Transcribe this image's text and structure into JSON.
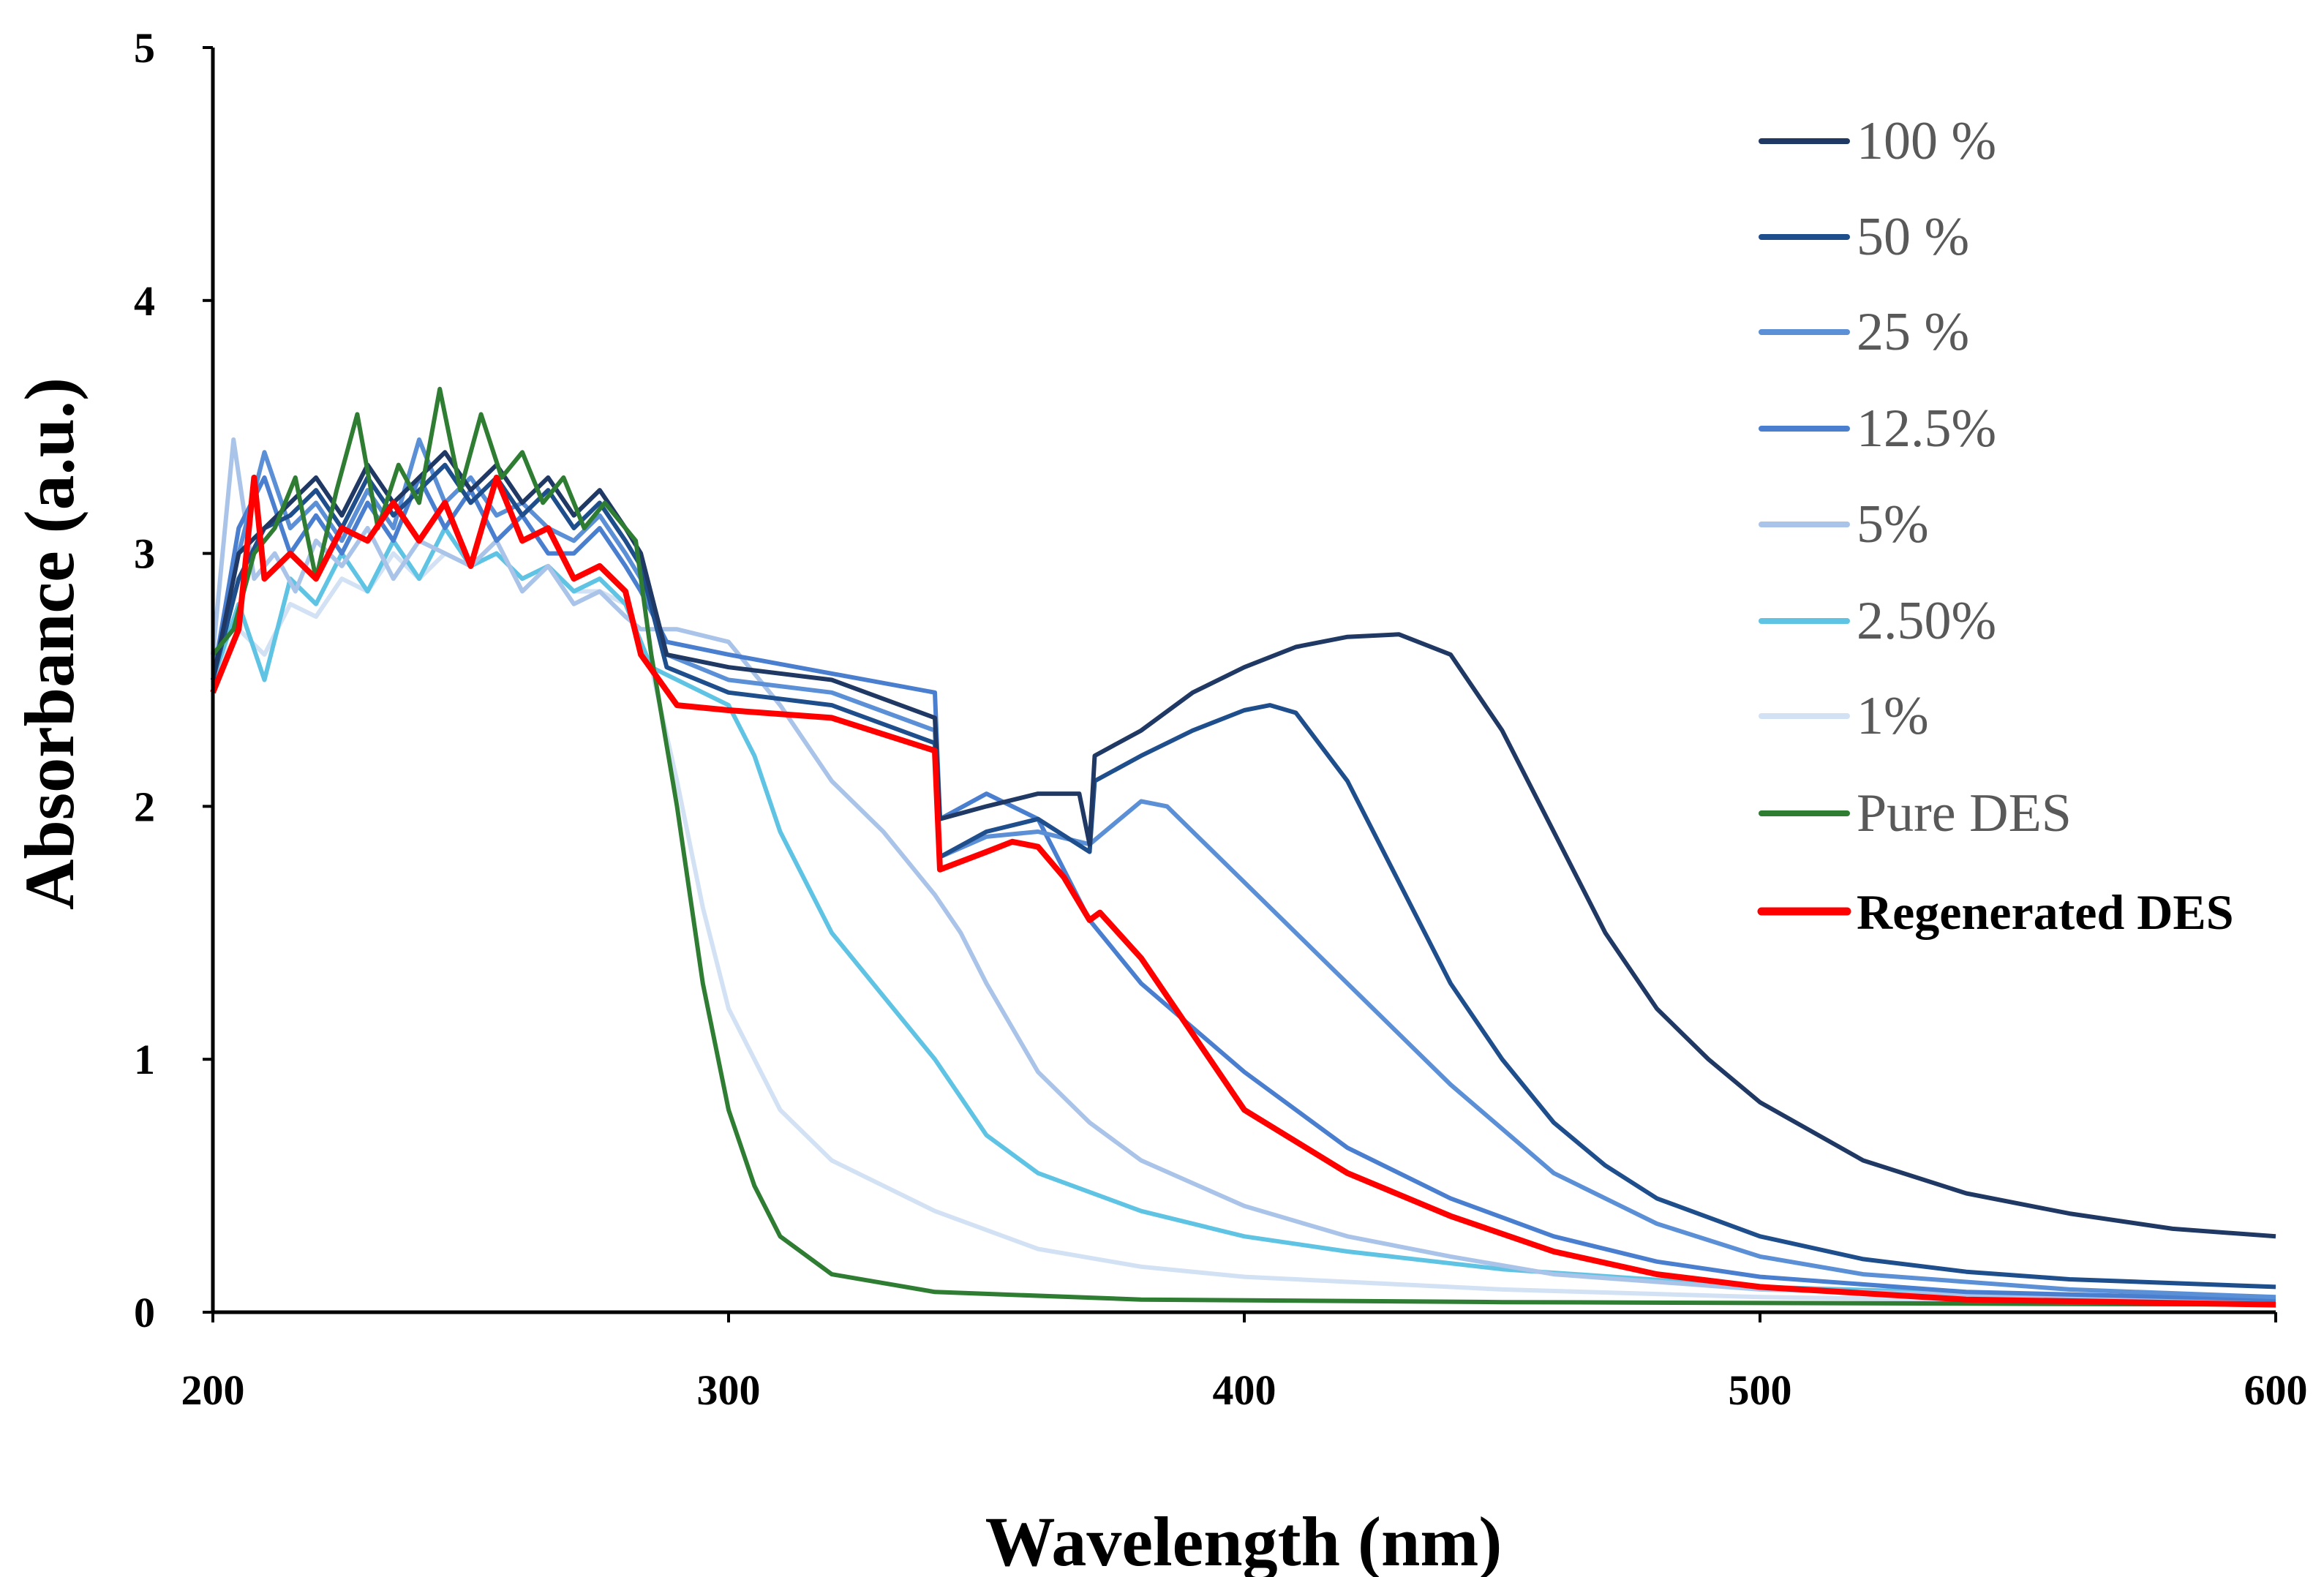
{
  "chart_data": {
    "type": "line",
    "title": "",
    "xlabel": "Wavelength (nm)",
    "ylabel": "Absorbance (a.u.)",
    "xlim": [
      200,
      600
    ],
    "ylim": [
      0,
      5
    ],
    "xticks": [
      "200",
      "300",
      "400",
      "500",
      "600"
    ],
    "yticks": [
      "0",
      "1",
      "2",
      "3",
      "4",
      "5"
    ],
    "grid": false,
    "legend_position": "top-right",
    "series": [
      {
        "name": "100 %",
        "color": "#1f3864",
        "bold": false,
        "x": [
          200,
          205,
          210,
          215,
          220,
          225,
          230,
          235,
          240,
          245,
          250,
          255,
          260,
          265,
          270,
          275,
          280,
          283,
          288,
          300,
          320,
          340,
          341,
          350,
          360,
          368,
          370,
          371,
          380,
          390,
          400,
          410,
          420,
          430,
          440,
          450,
          460,
          470,
          480,
          490,
          500,
          520,
          540,
          560,
          580,
          600
        ],
        "y": [
          2.5,
          3.0,
          3.1,
          3.2,
          3.3,
          3.15,
          3.35,
          3.2,
          3.3,
          3.4,
          3.25,
          3.35,
          3.2,
          3.3,
          3.15,
          3.25,
          3.1,
          3.0,
          2.6,
          2.55,
          2.5,
          2.35,
          1.95,
          2.0,
          2.05,
          2.05,
          1.85,
          2.2,
          2.3,
          2.45,
          2.55,
          2.63,
          2.67,
          2.68,
          2.6,
          2.3,
          1.9,
          1.5,
          1.2,
          1.0,
          0.83,
          0.6,
          0.47,
          0.39,
          0.33,
          0.3
        ]
      },
      {
        "name": "50 %",
        "color": "#1e4e8c",
        "bold": false,
        "x": [
          200,
          205,
          210,
          215,
          220,
          225,
          230,
          235,
          240,
          245,
          250,
          255,
          260,
          265,
          270,
          275,
          280,
          283,
          288,
          300,
          320,
          340,
          341,
          350,
          360,
          370,
          371,
          380,
          390,
          400,
          405,
          410,
          420,
          430,
          440,
          450,
          460,
          470,
          480,
          500,
          520,
          540,
          560,
          600
        ],
        "y": [
          2.5,
          2.9,
          3.1,
          3.15,
          3.25,
          3.1,
          3.3,
          3.15,
          3.25,
          3.35,
          3.2,
          3.3,
          3.15,
          3.25,
          3.1,
          3.2,
          3.05,
          2.95,
          2.55,
          2.45,
          2.4,
          2.25,
          1.8,
          1.9,
          1.95,
          1.82,
          2.1,
          2.2,
          2.3,
          2.38,
          2.4,
          2.37,
          2.1,
          1.7,
          1.3,
          1.0,
          0.75,
          0.58,
          0.45,
          0.3,
          0.21,
          0.16,
          0.13,
          0.1
        ]
      },
      {
        "name": "25 %",
        "color": "#5b8fd6",
        "bold": false,
        "x": [
          200,
          205,
          210,
          215,
          220,
          225,
          230,
          235,
          240,
          245,
          250,
          255,
          260,
          265,
          270,
          275,
          280,
          283,
          288,
          300,
          320,
          340,
          341,
          350,
          360,
          370,
          380,
          385,
          390,
          400,
          420,
          440,
          460,
          480,
          500,
          520,
          560,
          600
        ],
        "y": [
          2.5,
          3.0,
          3.4,
          3.1,
          3.2,
          3.05,
          3.25,
          3.1,
          3.45,
          3.2,
          3.3,
          3.15,
          3.2,
          3.1,
          3.05,
          3.15,
          3.0,
          2.9,
          2.6,
          2.5,
          2.45,
          2.3,
          1.8,
          1.88,
          1.9,
          1.85,
          2.02,
          2.0,
          1.9,
          1.7,
          1.3,
          0.9,
          0.55,
          0.35,
          0.22,
          0.15,
          0.09,
          0.06
        ]
      },
      {
        "name": "12.5%",
        "color": "#4a7fd0",
        "bold": false,
        "x": [
          200,
          205,
          210,
          215,
          220,
          225,
          230,
          235,
          240,
          245,
          250,
          255,
          260,
          265,
          270,
          275,
          280,
          283,
          288,
          300,
          340,
          341,
          350,
          360,
          370,
          380,
          400,
          420,
          440,
          460,
          480,
          500,
          540,
          600
        ],
        "y": [
          2.5,
          3.1,
          3.3,
          3.0,
          3.15,
          3.0,
          3.2,
          3.05,
          3.3,
          3.1,
          3.25,
          3.05,
          3.15,
          3.0,
          3.0,
          3.1,
          2.95,
          2.85,
          2.65,
          2.6,
          2.45,
          1.95,
          2.05,
          1.95,
          1.55,
          1.3,
          0.95,
          0.65,
          0.45,
          0.3,
          0.2,
          0.14,
          0.08,
          0.05
        ]
      },
      {
        "name": "5%",
        "color": "#a9c4e8",
        "bold": false,
        "x": [
          200,
          204,
          208,
          212,
          216,
          220,
          225,
          230,
          235,
          240,
          245,
          250,
          255,
          260,
          265,
          270,
          275,
          280,
          283,
          290,
          300,
          310,
          320,
          330,
          340,
          345,
          350,
          360,
          370,
          380,
          400,
          420,
          440,
          460,
          500,
          600
        ],
        "y": [
          2.6,
          3.45,
          2.9,
          3.0,
          2.85,
          3.05,
          2.95,
          3.1,
          2.9,
          3.05,
          3.0,
          2.95,
          3.05,
          2.85,
          2.95,
          2.8,
          2.85,
          2.75,
          2.7,
          2.7,
          2.65,
          2.4,
          2.1,
          1.9,
          1.65,
          1.5,
          1.3,
          0.95,
          0.75,
          0.6,
          0.42,
          0.3,
          0.22,
          0.15,
          0.09,
          0.04
        ]
      },
      {
        "name": "2.50%",
        "color": "#5fc3e4",
        "bold": false,
        "x": [
          200,
          205,
          210,
          215,
          220,
          225,
          230,
          235,
          240,
          245,
          250,
          255,
          260,
          265,
          270,
          275,
          280,
          285,
          300,
          305,
          310,
          320,
          330,
          340,
          345,
          350,
          360,
          380,
          400,
          420,
          450,
          500,
          600
        ],
        "y": [
          2.5,
          2.8,
          2.5,
          2.9,
          2.8,
          3.0,
          2.85,
          3.05,
          2.9,
          3.1,
          2.95,
          3.0,
          2.9,
          2.95,
          2.85,
          2.9,
          2.8,
          2.55,
          2.4,
          2.2,
          1.9,
          1.5,
          1.25,
          1.0,
          0.85,
          0.7,
          0.55,
          0.4,
          0.3,
          0.24,
          0.17,
          0.1,
          0.04
        ]
      },
      {
        "name": "1%",
        "color": "#d2e1f4",
        "bold": false,
        "x": [
          200,
          205,
          210,
          215,
          220,
          225,
          230,
          235,
          240,
          245,
          250,
          255,
          260,
          265,
          270,
          275,
          280,
          285,
          290,
          295,
          300,
          310,
          320,
          340,
          360,
          380,
          400,
          450,
          500,
          600
        ],
        "y": [
          2.5,
          2.7,
          2.6,
          2.8,
          2.75,
          2.9,
          2.85,
          3.0,
          2.9,
          3.0,
          2.95,
          3.0,
          2.9,
          2.95,
          2.85,
          2.85,
          2.8,
          2.55,
          2.1,
          1.6,
          1.2,
          0.8,
          0.6,
          0.4,
          0.25,
          0.18,
          0.14,
          0.09,
          0.06,
          0.03
        ]
      },
      {
        "name": "Pure DES",
        "color": "#2e7d32",
        "bold": false,
        "x": [
          200,
          204,
          208,
          212,
          216,
          220,
          224,
          228,
          232,
          236,
          240,
          244,
          248,
          252,
          256,
          260,
          264,
          268,
          272,
          276,
          280,
          282,
          285,
          290,
          295,
          300,
          305,
          310,
          320,
          340,
          380,
          450,
          600
        ],
        "y": [
          2.6,
          2.7,
          3.0,
          3.1,
          3.3,
          2.9,
          3.25,
          3.55,
          3.1,
          3.35,
          3.2,
          3.65,
          3.25,
          3.55,
          3.3,
          3.4,
          3.2,
          3.3,
          3.1,
          3.2,
          3.1,
          3.05,
          2.6,
          2.0,
          1.3,
          0.8,
          0.5,
          0.3,
          0.15,
          0.08,
          0.05,
          0.04,
          0.03
        ]
      },
      {
        "name": "Regenerated DES",
        "color": "#ff0000",
        "bold": true,
        "x": [
          200,
          205,
          208,
          210,
          215,
          220,
          225,
          230,
          235,
          240,
          245,
          250,
          255,
          260,
          265,
          270,
          275,
          280,
          283,
          290,
          300,
          320,
          340,
          341,
          350,
          355,
          360,
          365,
          370,
          372,
          380,
          390,
          400,
          420,
          440,
          460,
          480,
          500,
          540,
          600
        ],
        "y": [
          2.45,
          2.7,
          3.3,
          2.9,
          3.0,
          2.9,
          3.1,
          3.05,
          3.2,
          3.05,
          3.2,
          2.95,
          3.3,
          3.05,
          3.1,
          2.9,
          2.95,
          2.85,
          2.6,
          2.4,
          2.38,
          2.35,
          2.22,
          1.75,
          1.82,
          1.86,
          1.84,
          1.72,
          1.55,
          1.58,
          1.4,
          1.1,
          0.8,
          0.55,
          0.38,
          0.24,
          0.15,
          0.1,
          0.05,
          0.03
        ]
      }
    ]
  }
}
